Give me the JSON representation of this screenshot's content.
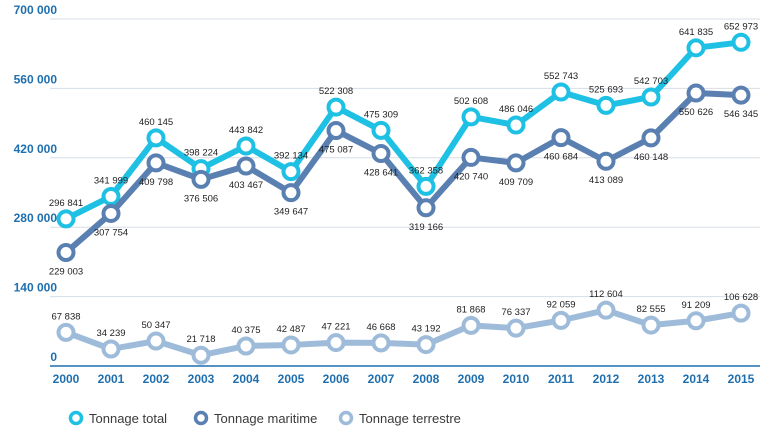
{
  "chart_data": {
    "type": "line",
    "title": "",
    "xlabel": "",
    "ylabel": "",
    "categories": [
      "2000",
      "2001",
      "2002",
      "2003",
      "2004",
      "2005",
      "2006",
      "2007",
      "2008",
      "2009",
      "2010",
      "2011",
      "2012",
      "2013",
      "2014",
      "2015"
    ],
    "ylim": [
      0,
      700000
    ],
    "yticks": [
      0,
      140000,
      280000,
      420000,
      560000,
      700000
    ],
    "ytick_labels": [
      "0",
      "140 000",
      "280 000",
      "420 000",
      "560 000",
      "700 000"
    ],
    "grid": true,
    "legend_position": "bottom-left",
    "series": [
      {
        "name": "Tonnage total",
        "color": "#1ec0e4",
        "values": [
          296841,
          341999,
          460145,
          398224,
          443842,
          392134,
          522308,
          475309,
          362358,
          502608,
          486046,
          552743,
          525693,
          542703,
          641835,
          652973
        ],
        "labels": [
          "296 841",
          "341 999",
          "460 145",
          "398 224",
          "443 842",
          "392 134",
          "522 308",
          "475 309",
          "362 358",
          "502 608",
          "486 046",
          "552 743",
          "525 693",
          "542 703",
          "641 835",
          "652 973"
        ]
      },
      {
        "name": "Tonnage maritime",
        "color": "#5a7fb1",
        "values": [
          229003,
          307754,
          409798,
          376506,
          403467,
          349647,
          475087,
          428641,
          319166,
          420740,
          409709,
          460684,
          413089,
          460148,
          550626,
          546345
        ],
        "labels": [
          "229 003",
          "307 754",
          "409 798",
          "376 506",
          "403 467",
          "349 647",
          "475 087",
          "428 641",
          "319 166",
          "420 740",
          "409 709",
          "460 684",
          "413 089",
          "460 148",
          "550 626",
          "546 345"
        ]
      },
      {
        "name": "Tonnage terrestre",
        "color": "#9ebcda",
        "values": [
          67838,
          34239,
          50347,
          21718,
          40375,
          42487,
          47221,
          46668,
          43192,
          81868,
          76337,
          92059,
          112604,
          82555,
          91209,
          106628
        ],
        "labels": [
          "67 838",
          "34 239",
          "50 347",
          "21 718",
          "40 375",
          "42 487",
          "47 221",
          "46 668",
          "43 192",
          "81 868",
          "76 337",
          "92 059",
          "112 604",
          "82 555",
          "91 209",
          "106 628"
        ]
      }
    ]
  }
}
